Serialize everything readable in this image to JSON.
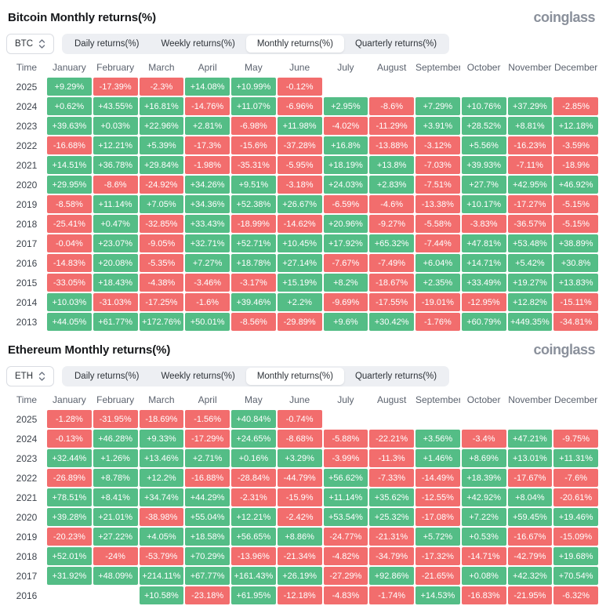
{
  "brand": "coinglass",
  "colors": {
    "green": "#54bd86",
    "red": "#f26d6d"
  },
  "time_label": "Time",
  "months": [
    "January",
    "February",
    "March",
    "April",
    "May",
    "June",
    "July",
    "August",
    "September",
    "October",
    "November",
    "December"
  ],
  "tabs": [
    "Daily returns(%)",
    "Weekly returns(%)",
    "Monthly returns(%)",
    "Quarterly returns(%)"
  ],
  "active_tab": "Monthly returns(%)",
  "sections": [
    {
      "title": "Bitcoin Monthly returns(%)",
      "symbol": "BTC",
      "rows": [
        {
          "year": "2025",
          "values": [
            "+9.29%",
            "-17.39%",
            "-2.3%",
            "+14.08%",
            "+10.99%",
            "-0.12%",
            "",
            "",
            "",
            "",
            "",
            ""
          ]
        },
        {
          "year": "2024",
          "values": [
            "+0.62%",
            "+43.55%",
            "+16.81%",
            "-14.76%",
            "+11.07%",
            "-6.96%",
            "+2.95%",
            "-8.6%",
            "+7.29%",
            "+10.76%",
            "+37.29%",
            "-2.85%"
          ]
        },
        {
          "year": "2023",
          "values": [
            "+39.63%",
            "+0.03%",
            "+22.96%",
            "+2.81%",
            "-6.98%",
            "+11.98%",
            "-4.02%",
            "-11.29%",
            "+3.91%",
            "+28.52%",
            "+8.81%",
            "+12.18%"
          ]
        },
        {
          "year": "2022",
          "values": [
            "-16.68%",
            "+12.21%",
            "+5.39%",
            "-17.3%",
            "-15.6%",
            "-37.28%",
            "+16.8%",
            "-13.88%",
            "-3.12%",
            "+5.56%",
            "-16.23%",
            "-3.59%"
          ]
        },
        {
          "year": "2021",
          "values": [
            "+14.51%",
            "+36.78%",
            "+29.84%",
            "-1.98%",
            "-35.31%",
            "-5.95%",
            "+18.19%",
            "+13.8%",
            "-7.03%",
            "+39.93%",
            "-7.11%",
            "-18.9%"
          ]
        },
        {
          "year": "2020",
          "values": [
            "+29.95%",
            "-8.6%",
            "-24.92%",
            "+34.26%",
            "+9.51%",
            "-3.18%",
            "+24.03%",
            "+2.83%",
            "-7.51%",
            "+27.7%",
            "+42.95%",
            "+46.92%"
          ]
        },
        {
          "year": "2019",
          "values": [
            "-8.58%",
            "+11.14%",
            "+7.05%",
            "+34.36%",
            "+52.38%",
            "+26.67%",
            "-6.59%",
            "-4.6%",
            "-13.38%",
            "+10.17%",
            "-17.27%",
            "-5.15%"
          ]
        },
        {
          "year": "2018",
          "values": [
            "-25.41%",
            "+0.47%",
            "-32.85%",
            "+33.43%",
            "-18.99%",
            "-14.62%",
            "+20.96%",
            "-9.27%",
            "-5.58%",
            "-3.83%",
            "-36.57%",
            "-5.15%"
          ]
        },
        {
          "year": "2017",
          "values": [
            "-0.04%",
            "+23.07%",
            "-9.05%",
            "+32.71%",
            "+52.71%",
            "+10.45%",
            "+17.92%",
            "+65.32%",
            "-7.44%",
            "+47.81%",
            "+53.48%",
            "+38.89%"
          ]
        },
        {
          "year": "2016",
          "values": [
            "-14.83%",
            "+20.08%",
            "-5.35%",
            "+7.27%",
            "+18.78%",
            "+27.14%",
            "-7.67%",
            "-7.49%",
            "+6.04%",
            "+14.71%",
            "+5.42%",
            "+30.8%"
          ]
        },
        {
          "year": "2015",
          "values": [
            "-33.05%",
            "+18.43%",
            "-4.38%",
            "-3.46%",
            "-3.17%",
            "+15.19%",
            "+8.2%",
            "-18.67%",
            "+2.35%",
            "+33.49%",
            "+19.27%",
            "+13.83%"
          ]
        },
        {
          "year": "2014",
          "values": [
            "+10.03%",
            "-31.03%",
            "-17.25%",
            "-1.6%",
            "+39.46%",
            "+2.2%",
            "-9.69%",
            "-17.55%",
            "-19.01%",
            "-12.95%",
            "+12.82%",
            "-15.11%"
          ]
        },
        {
          "year": "2013",
          "values": [
            "+44.05%",
            "+61.77%",
            "+172.76%",
            "+50.01%",
            "-8.56%",
            "-29.89%",
            "+9.6%",
            "+30.42%",
            "-1.76%",
            "+60.79%",
            "+449.35%",
            "-34.81%"
          ]
        }
      ]
    },
    {
      "title": "Ethereum Monthly returns(%)",
      "symbol": "ETH",
      "rows": [
        {
          "year": "2025",
          "values": [
            "-1.28%",
            "-31.95%",
            "-18.69%",
            "-1.56%",
            "+40.84%",
            "-0.74%",
            "",
            "",
            "",
            "",
            "",
            ""
          ]
        },
        {
          "year": "2024",
          "values": [
            "-0.13%",
            "+46.28%",
            "+9.33%",
            "-17.29%",
            "+24.65%",
            "-8.68%",
            "-5.88%",
            "-22.21%",
            "+3.56%",
            "-3.4%",
            "+47.21%",
            "-9.75%"
          ]
        },
        {
          "year": "2023",
          "values": [
            "+32.44%",
            "+1.26%",
            "+13.46%",
            "+2.71%",
            "+0.16%",
            "+3.29%",
            "-3.99%",
            "-11.3%",
            "+1.46%",
            "+8.69%",
            "+13.01%",
            "+11.31%"
          ]
        },
        {
          "year": "2022",
          "values": [
            "-26.89%",
            "+8.78%",
            "+12.2%",
            "-16.88%",
            "-28.84%",
            "-44.79%",
            "+56.62%",
            "-7.33%",
            "-14.49%",
            "+18.39%",
            "-17.67%",
            "-7.6%"
          ]
        },
        {
          "year": "2021",
          "values": [
            "+78.51%",
            "+8.41%",
            "+34.74%",
            "+44.29%",
            "-2.31%",
            "-15.9%",
            "+11.14%",
            "+35.62%",
            "-12.55%",
            "+42.92%",
            "+8.04%",
            "-20.61%"
          ]
        },
        {
          "year": "2020",
          "values": [
            "+39.28%",
            "+21.01%",
            "-38.98%",
            "+55.04%",
            "+12.21%",
            "-2.42%",
            "+53.54%",
            "+25.32%",
            "-17.08%",
            "+7.22%",
            "+59.45%",
            "+19.46%"
          ]
        },
        {
          "year": "2019",
          "values": [
            "-20.23%",
            "+27.22%",
            "+4.05%",
            "+18.58%",
            "+56.65%",
            "+8.86%",
            "-24.77%",
            "-21.31%",
            "+5.72%",
            "+0.53%",
            "-16.67%",
            "-15.09%"
          ]
        },
        {
          "year": "2018",
          "values": [
            "+52.01%",
            "-24%",
            "-53.79%",
            "+70.29%",
            "-13.96%",
            "-21.34%",
            "-4.82%",
            "-34.79%",
            "-17.32%",
            "-14.71%",
            "-42.79%",
            "+19.68%"
          ]
        },
        {
          "year": "2017",
          "values": [
            "+31.92%",
            "+48.09%",
            "+214.11%",
            "+67.77%",
            "+161.43%",
            "+26.19%",
            "-27.29%",
            "+92.86%",
            "-21.65%",
            "+0.08%",
            "+42.32%",
            "+70.54%"
          ]
        },
        {
          "year": "2016",
          "values": [
            "",
            "",
            "+10.58%",
            "-23.18%",
            "+61.95%",
            "-12.18%",
            "-4.83%",
            "-1.74%",
            "+14.53%",
            "-16.83%",
            "-21.95%",
            "-6.32%"
          ]
        }
      ]
    }
  ]
}
